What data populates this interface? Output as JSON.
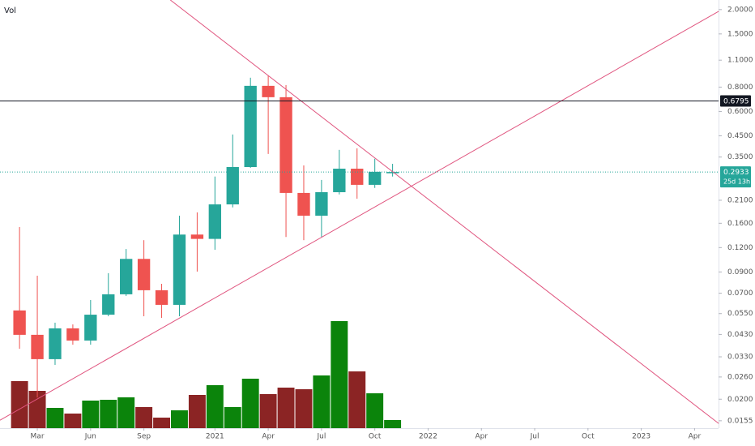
{
  "chart_data": {
    "type": "candlestick",
    "log_scale": true,
    "volume_title": "Vol",
    "x": [
      0,
      1,
      2,
      3,
      4,
      5,
      6,
      7,
      8,
      9,
      10,
      11,
      12,
      13,
      14,
      15,
      16,
      17,
      18,
      19,
      20,
      21
    ],
    "open": [
      0.0571,
      0.0428,
      0.0321,
      0.0462,
      0.04,
      0.0543,
      0.0691,
      0.105,
      0.0725,
      0.061,
      0.14,
      0.133,
      0.2,
      0.311,
      0.812,
      0.71,
      0.229,
      0.175,
      0.231,
      0.305,
      0.252,
      0.289
    ],
    "high": [
      0.153,
      0.0861,
      0.0494,
      0.0484,
      0.0646,
      0.0887,
      0.118,
      0.131,
      0.0782,
      0.175,
      0.182,
      0.278,
      0.457,
      0.894,
      0.92,
      0.82,
      0.317,
      0.267,
      0.381,
      0.388,
      0.343,
      0.323
    ],
    "low": [
      0.0363,
      0.0204,
      0.03,
      0.0381,
      0.0381,
      0.0533,
      0.0678,
      0.0533,
      0.0523,
      0.0533,
      0.0904,
      0.117,
      0.193,
      0.308,
      0.363,
      0.136,
      0.131,
      0.136,
      0.225,
      0.214,
      0.243,
      0.278
    ],
    "close": [
      0.0428,
      0.0321,
      0.0462,
      0.04,
      0.0543,
      0.0691,
      0.105,
      0.0725,
      0.061,
      0.14,
      0.133,
      0.2,
      0.311,
      0.812,
      0.71,
      0.229,
      0.175,
      0.231,
      0.305,
      0.252,
      0.294,
      0.2933
    ],
    "volume": [
      58,
      46,
      25,
      18,
      34,
      35,
      38,
      26,
      13,
      22,
      41,
      53,
      26,
      61,
      42,
      50,
      48,
      65,
      132,
      70,
      43,
      10
    ],
    "up_color": "#26a69a",
    "down_color": "#ef5350",
    "volume_up_color": "#0b840b",
    "volume_down_color": "#8b2424",
    "xlim": [
      -1.1,
      39.35
    ],
    "xticks": [
      {
        "value": 1,
        "label": "Mar"
      },
      {
        "value": 4,
        "label": "Jun"
      },
      {
        "value": 7,
        "label": "Sep"
      },
      {
        "value": 11,
        "label": "2021"
      },
      {
        "value": 14,
        "label": "Apr"
      },
      {
        "value": 17,
        "label": "Jul"
      },
      {
        "value": 20,
        "label": "Oct"
      },
      {
        "value": 23,
        "label": "2022"
      },
      {
        "value": 26,
        "label": "Apr"
      },
      {
        "value": 29,
        "label": "Jul"
      },
      {
        "value": 32,
        "label": "Oct"
      },
      {
        "value": 35,
        "label": "2023"
      },
      {
        "value": 38,
        "label": "Apr"
      }
    ],
    "ylim": [
      0.0142,
      2.24
    ],
    "yticks": [
      {
        "value": 2,
        "label": "2.0000"
      },
      {
        "value": 1.5,
        "label": "1.5000"
      },
      {
        "value": 1.1,
        "label": "1.1000"
      },
      {
        "value": 0.8,
        "label": "0.8000"
      },
      {
        "value": 0.6,
        "label": "0.6000"
      },
      {
        "value": 0.45,
        "label": "0.4500"
      },
      {
        "value": 0.35,
        "label": "0.3500"
      },
      {
        "value": 0.21,
        "label": "0.2100"
      },
      {
        "value": 0.16,
        "label": "0.1600"
      },
      {
        "value": 0.12,
        "label": "0.1200"
      },
      {
        "value": 0.09,
        "label": "0.0900"
      },
      {
        "value": 0.07,
        "label": "0.0700"
      },
      {
        "value": 0.055,
        "label": "0.0550"
      },
      {
        "value": 0.043,
        "label": "0.0430"
      },
      {
        "value": 0.033,
        "label": "0.0330"
      },
      {
        "value": 0.026,
        "label": "0.0260"
      },
      {
        "value": 0.02,
        "label": "0.0200"
      },
      {
        "value": 0.0155,
        "label": "0.0155"
      }
    ],
    "horizontal_line": {
      "value": 0.6795,
      "color": "#131722"
    },
    "last_price": {
      "value": 0.2933,
      "countdown": "25d 13h"
    },
    "trendlines": [
      {
        "color": "#e0557f",
        "points": [
          [
            8.49,
            2.24
          ],
          [
            39.36,
            0.015
          ]
        ]
      },
      {
        "color": "#e0557f",
        "points": [
          [
            -1.1,
            0.0156
          ],
          [
            39.36,
            1.96
          ]
        ]
      }
    ]
  }
}
